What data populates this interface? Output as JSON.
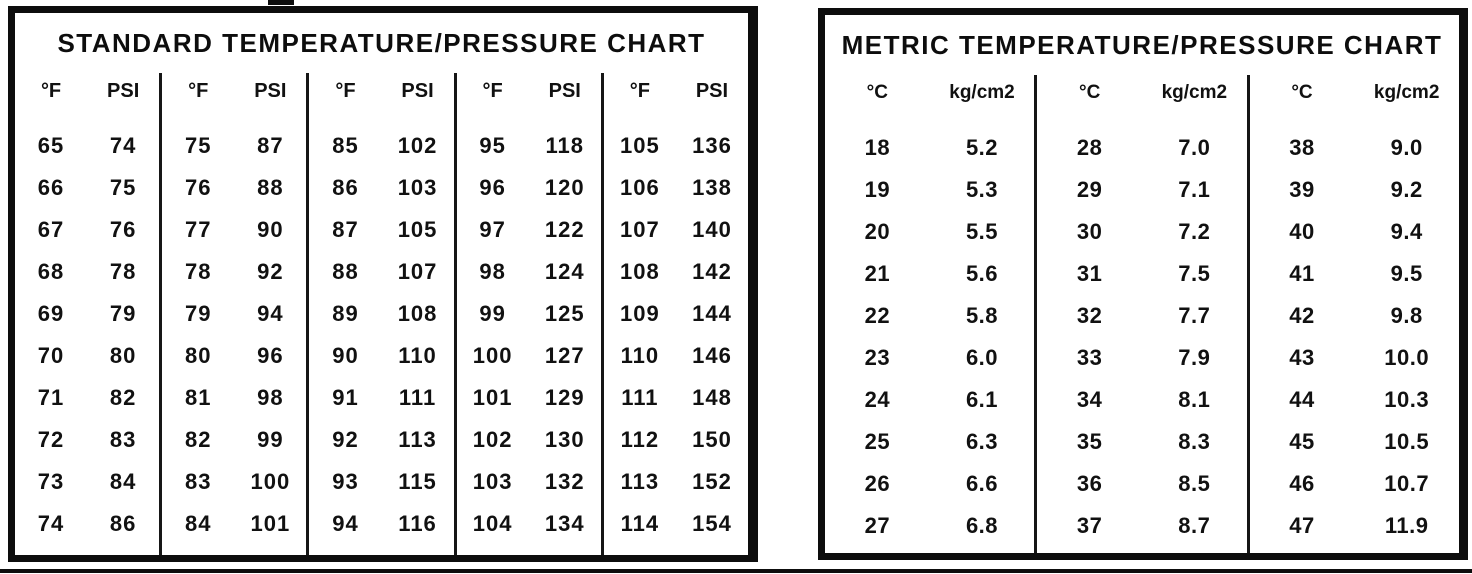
{
  "page": {
    "paper_color": "#ffffff",
    "ink_color": "#111111"
  },
  "standard_chart": {
    "title": "STANDARD TEMPERATURE/PRESSURE CHART",
    "temp_header": "°F",
    "pressure_header": "PSI",
    "columns": [
      {
        "rows": [
          [
            "65",
            "74"
          ],
          [
            "66",
            "75"
          ],
          [
            "67",
            "76"
          ],
          [
            "68",
            "78"
          ],
          [
            "69",
            "79"
          ],
          [
            "70",
            "80"
          ],
          [
            "71",
            "82"
          ],
          [
            "72",
            "83"
          ],
          [
            "73",
            "84"
          ],
          [
            "74",
            "86"
          ]
        ]
      },
      {
        "rows": [
          [
            "75",
            "87"
          ],
          [
            "76",
            "88"
          ],
          [
            "77",
            "90"
          ],
          [
            "78",
            "92"
          ],
          [
            "79",
            "94"
          ],
          [
            "80",
            "96"
          ],
          [
            "81",
            "98"
          ],
          [
            "82",
            "99"
          ],
          [
            "83",
            "100"
          ],
          [
            "84",
            "101"
          ]
        ]
      },
      {
        "rows": [
          [
            "85",
            "102"
          ],
          [
            "86",
            "103"
          ],
          [
            "87",
            "105"
          ],
          [
            "88",
            "107"
          ],
          [
            "89",
            "108"
          ],
          [
            "90",
            "110"
          ],
          [
            "91",
            "111"
          ],
          [
            "92",
            "113"
          ],
          [
            "93",
            "115"
          ],
          [
            "94",
            "116"
          ]
        ]
      },
      {
        "rows": [
          [
            "95",
            "118"
          ],
          [
            "96",
            "120"
          ],
          [
            "97",
            "122"
          ],
          [
            "98",
            "124"
          ],
          [
            "99",
            "125"
          ],
          [
            "100",
            "127"
          ],
          [
            "101",
            "129"
          ],
          [
            "102",
            "130"
          ],
          [
            "103",
            "132"
          ],
          [
            "104",
            "134"
          ]
        ]
      },
      {
        "rows": [
          [
            "105",
            "136"
          ],
          [
            "106",
            "138"
          ],
          [
            "107",
            "140"
          ],
          [
            "108",
            "142"
          ],
          [
            "109",
            "144"
          ],
          [
            "110",
            "146"
          ],
          [
            "111",
            "148"
          ],
          [
            "112",
            "150"
          ],
          [
            "113",
            "152"
          ],
          [
            "114",
            "154"
          ]
        ]
      }
    ]
  },
  "metric_chart": {
    "title": "METRIC TEMPERATURE/PRESSURE CHART",
    "temp_header": "°C",
    "pressure_header": "kg/cm2",
    "columns": [
      {
        "rows": [
          [
            "18",
            "5.2"
          ],
          [
            "19",
            "5.3"
          ],
          [
            "20",
            "5.5"
          ],
          [
            "21",
            "5.6"
          ],
          [
            "22",
            "5.8"
          ],
          [
            "23",
            "6.0"
          ],
          [
            "24",
            "6.1"
          ],
          [
            "25",
            "6.3"
          ],
          [
            "26",
            "6.6"
          ],
          [
            "27",
            "6.8"
          ]
        ]
      },
      {
        "rows": [
          [
            "28",
            "7.0"
          ],
          [
            "29",
            "7.1"
          ],
          [
            "30",
            "7.2"
          ],
          [
            "31",
            "7.5"
          ],
          [
            "32",
            "7.7"
          ],
          [
            "33",
            "7.9"
          ],
          [
            "34",
            "8.1"
          ],
          [
            "35",
            "8.3"
          ],
          [
            "36",
            "8.5"
          ],
          [
            "37",
            "8.7"
          ]
        ]
      },
      {
        "rows": [
          [
            "38",
            "9.0"
          ],
          [
            "39",
            "9.2"
          ],
          [
            "40",
            "9.4"
          ],
          [
            "41",
            "9.5"
          ],
          [
            "42",
            "9.8"
          ],
          [
            "43",
            "10.0"
          ],
          [
            "44",
            "10.3"
          ],
          [
            "45",
            "10.5"
          ],
          [
            "46",
            "10.7"
          ],
          [
            "47",
            "11.9"
          ]
        ]
      }
    ]
  }
}
